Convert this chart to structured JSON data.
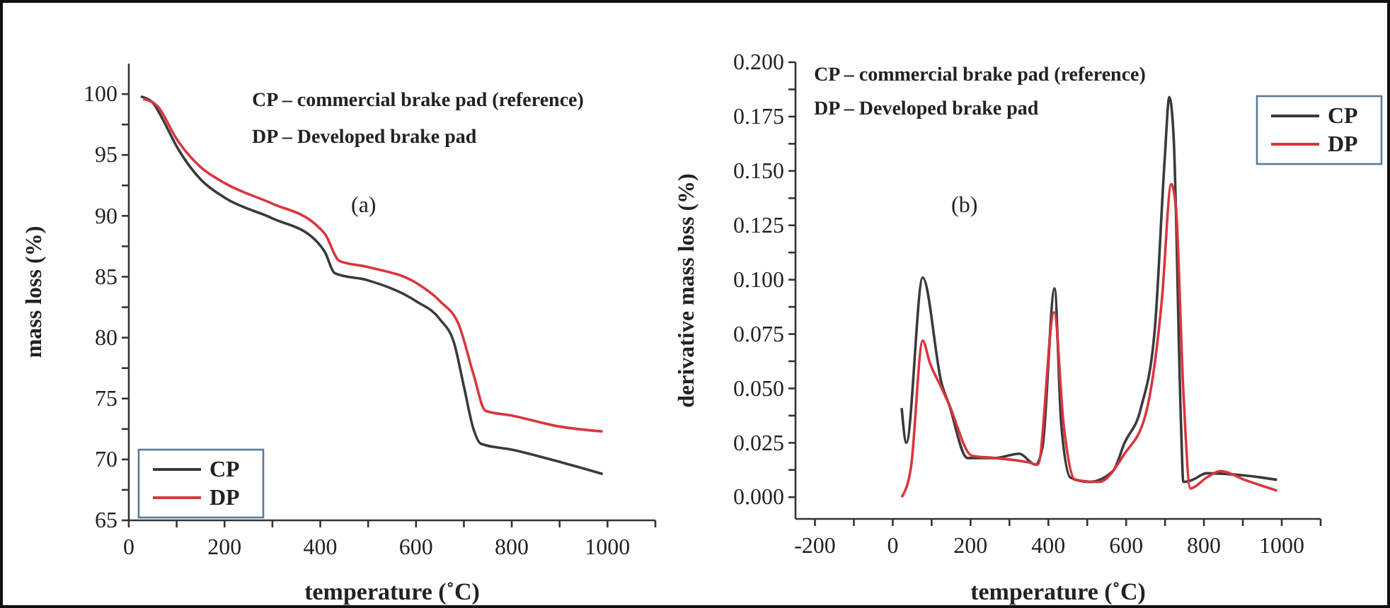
{
  "chart_data": [
    {
      "type": "line",
      "xlabel": "temperature (˚C)",
      "ylabel": "mass loss (%)",
      "annotations": [
        "CP – commercial brake pad (reference)",
        "DP – Developed brake pad",
        "(a)"
      ],
      "xlim": [
        0,
        1100
      ],
      "xticks": [
        0,
        {
          "value": 100,
          "label": null
        },
        200,
        {
          "value": 300,
          "label": null
        },
        400,
        {
          "value": 500,
          "label": null
        },
        600,
        {
          "value": 700,
          "label": null
        },
        800,
        {
          "value": 900,
          "label": null
        },
        1000,
        {
          "value": 1100,
          "label": null
        }
      ],
      "ylim": [
        65,
        102.5
      ],
      "yticks": [
        65,
        {
          "value": 67.5,
          "label": null
        },
        70,
        {
          "value": 72.5,
          "label": null
        },
        75,
        {
          "value": 77.5,
          "label": null
        },
        80,
        {
          "value": 82.5,
          "label": null
        },
        85,
        {
          "value": 87.5,
          "label": null
        },
        90,
        {
          "value": 92.5,
          "label": null
        },
        95,
        {
          "value": 97.5,
          "label": null
        },
        100
      ],
      "legend": "bottom left",
      "grid": false,
      "line_style": "solid",
      "marker": "none",
      "series": [
        {
          "name": "CP",
          "color": "#3a3a3a",
          "x": [
            25,
            50,
            70,
            100,
            150,
            200,
            300,
            390,
            410,
            430,
            500,
            600,
            650,
            680,
            700,
            720,
            735,
            800,
            900,
            990
          ],
          "values": [
            99.8,
            99.3,
            98,
            95.7,
            93,
            91.5,
            89.8,
            88,
            87,
            85.3,
            84.7,
            83,
            81.5,
            79.5,
            76,
            72.5,
            71.3,
            70.8,
            69.8,
            68.8
          ]
        },
        {
          "name": "DP",
          "color": "#d9363e",
          "x": [
            30,
            60,
            100,
            150,
            200,
            300,
            390,
            410,
            440,
            500,
            600,
            650,
            690,
            720,
            745,
            800,
            900,
            990
          ],
          "values": [
            99.6,
            99,
            96.3,
            94,
            92.7,
            91,
            89.3,
            88.5,
            86.3,
            85.8,
            84.5,
            83,
            81,
            77,
            74,
            73.6,
            72.7,
            72.3
          ]
        }
      ]
    },
    {
      "type": "line",
      "xlabel": "temperature (˚C)",
      "ylabel": "derivative mass loss (%)",
      "annotations": [
        "CP – commercial brake pad (reference)",
        "DP – Developed brake pad",
        "(b)"
      ],
      "xlim": [
        -250,
        1100
      ],
      "xticks": [
        -200,
        {
          "value": -100,
          "label": null
        },
        0,
        {
          "value": 100,
          "label": null
        },
        200,
        {
          "value": 300,
          "label": null
        },
        400,
        {
          "value": 500,
          "label": null
        },
        600,
        {
          "value": 700,
          "label": null
        },
        800,
        {
          "value": 900,
          "label": null
        },
        1000,
        {
          "value": 1100,
          "label": null
        }
      ],
      "ylim": [
        -0.01,
        0.2
      ],
      "yticks": [
        {
          "value": 0,
          "label": "0.000"
        },
        {
          "value": 0.0125,
          "label": null
        },
        {
          "value": 0.025,
          "label": "0.025"
        },
        {
          "value": 0.0375,
          "label": null
        },
        {
          "value": 0.05,
          "label": "0.050"
        },
        {
          "value": 0.0625,
          "label": null
        },
        {
          "value": 0.075,
          "label": "0.075"
        },
        {
          "value": 0.0875,
          "label": null
        },
        {
          "value": 0.1,
          "label": "0.100"
        },
        {
          "value": 0.1125,
          "label": null
        },
        {
          "value": 0.125,
          "label": "0.125"
        },
        {
          "value": 0.1375,
          "label": null
        },
        {
          "value": 0.15,
          "label": "0.150"
        },
        {
          "value": 0.1625,
          "label": null
        },
        {
          "value": 0.175,
          "label": "0.175"
        },
        {
          "value": 0.1875,
          "label": null
        },
        {
          "value": 0.2,
          "label": "0.200"
        }
      ],
      "legend": "top right",
      "grid": false,
      "line_style": "solid",
      "marker": "none",
      "series": [
        {
          "name": "CP",
          "color": "#3a3a3a",
          "x": [
            23,
            35,
            77,
            126,
            144,
            192,
            264,
            325,
            367,
            385,
            416,
            433,
            457,
            506,
            566,
            596,
            638,
            674,
            699,
            711,
            722,
            741,
            747,
            771,
            807,
            904,
            988
          ],
          "values": [
            0.041,
            0.025,
            0.101,
            0.052,
            0.043,
            0.018,
            0.018,
            0.02,
            0.015,
            0.023,
            0.096,
            0.034,
            0.009,
            0.007,
            0.012,
            0.025,
            0.041,
            0.078,
            0.155,
            0.184,
            0.166,
            0.034,
            0.007,
            0.008,
            0.011,
            0.01,
            0.008
          ]
        },
        {
          "name": "DP",
          "color": "#d9363e",
          "x": [
            23,
            47,
            77,
            95,
            126,
            144,
            204,
            264,
            349,
            373,
            415,
            439,
            469,
            530,
            596,
            650,
            692,
            716,
            728,
            747,
            765,
            807,
            843,
            904,
            988
          ],
          "values": [
            0,
            0.014,
            0.072,
            0.062,
            0.05,
            0.043,
            0.019,
            0.018,
            0.016,
            0.015,
            0.085,
            0.034,
            0.008,
            0.007,
            0.02,
            0.038,
            0.091,
            0.144,
            0.133,
            0.049,
            0.004,
            0.009,
            0.012,
            0.008,
            0.003
          ]
        }
      ]
    }
  ]
}
